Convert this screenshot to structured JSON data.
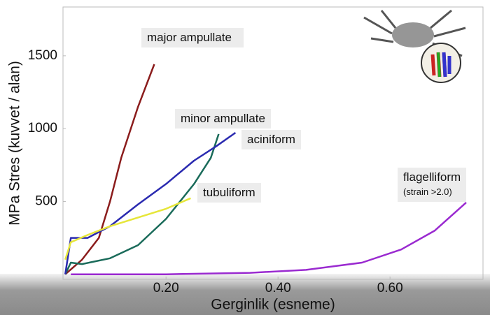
{
  "chart_data": {
    "type": "line",
    "x_label": "Gerginlik (esneme)",
    "y_label": "MPa Stres (kuvvet / alan)",
    "xlim": [
      0.016,
      0.766
    ],
    "ylim": [
      -35,
      1835
    ],
    "xticks": [
      {
        "value": 0.2,
        "label": "0.20"
      },
      {
        "value": 0.4,
        "label": "0.40"
      },
      {
        "value": 0.6,
        "label": "0.60"
      }
    ],
    "yticks": [
      500,
      1000,
      1500
    ],
    "grid": false,
    "series": [
      {
        "name": "major ampullate",
        "color": "#8b1c1c",
        "x": [
          0.02,
          0.05,
          0.08,
          0.1,
          0.12,
          0.15,
          0.179
        ],
        "values": [
          0,
          100,
          250,
          500,
          800,
          1150,
          1442
        ]
      },
      {
        "name": "minor ampullate",
        "color": "#1a6b5a",
        "x": [
          0.02,
          0.03,
          0.05,
          0.1,
          0.15,
          0.2,
          0.25,
          0.28,
          0.294
        ],
        "values": [
          0,
          80,
          70,
          110,
          200,
          380,
          620,
          800,
          963
        ]
      },
      {
        "name": "aciniform",
        "color": "#2a2ab0",
        "x": [
          0.02,
          0.03,
          0.06,
          0.1,
          0.15,
          0.2,
          0.25,
          0.29,
          0.324
        ],
        "values": [
          0,
          250,
          250,
          330,
          480,
          620,
          780,
          880,
          972
        ]
      },
      {
        "name": "tubuliform",
        "color": "#e6e63a",
        "x": [
          0.02,
          0.03,
          0.06,
          0.1,
          0.15,
          0.2,
          0.244
        ],
        "values": [
          100,
          220,
          270,
          330,
          390,
          450,
          522
        ]
      },
      {
        "name": "flagelliform",
        "color": "#9a2ad0",
        "x": [
          0.03,
          0.2,
          0.35,
          0.45,
          0.55,
          0.62,
          0.68,
          0.736
        ],
        "values": [
          0,
          0,
          10,
          30,
          80,
          170,
          300,
          493
        ]
      }
    ],
    "annotations": [
      "(strain >2.0)"
    ]
  }
}
